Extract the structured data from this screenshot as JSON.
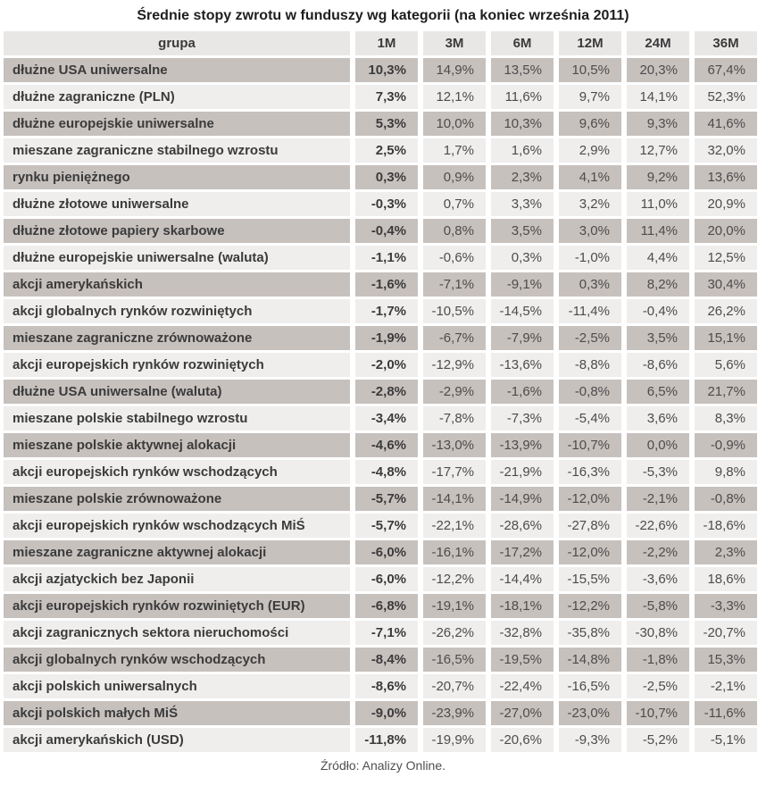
{
  "page": {
    "title": "Średnie stopy zwrotu w funduszy wg kategorii (na koniec września 2011)",
    "source": "Źródło: Analizy Online."
  },
  "colors": {
    "row_dark": "#c7c1be",
    "row_light": "#efeeed",
    "header_bg": "#e9e7e6",
    "label_text": "#3b3b3b",
    "value_text": "#4c4c4c"
  },
  "chart_data": {
    "type": "table",
    "columns": [
      "grupa",
      "1M",
      "3M",
      "6M",
      "12M",
      "24M",
      "36M"
    ],
    "rows": [
      {
        "group": "dłużne USA uniwersalne",
        "values": [
          "10,3%",
          "14,9%",
          "13,5%",
          "10,5%",
          "20,3%",
          "67,4%"
        ]
      },
      {
        "group": "dłużne zagraniczne (PLN)",
        "values": [
          "7,3%",
          "12,1%",
          "11,6%",
          "9,7%",
          "14,1%",
          "52,3%"
        ]
      },
      {
        "group": "dłużne europejskie uniwersalne",
        "values": [
          "5,3%",
          "10,0%",
          "10,3%",
          "9,6%",
          "9,3%",
          "41,6%"
        ]
      },
      {
        "group": "mieszane zagraniczne stabilnego wzrostu",
        "values": [
          "2,5%",
          "1,7%",
          "1,6%",
          "2,9%",
          "12,7%",
          "32,0%"
        ]
      },
      {
        "group": "rynku pieniężnego",
        "values": [
          "0,3%",
          "0,9%",
          "2,3%",
          "4,1%",
          "9,2%",
          "13,6%"
        ]
      },
      {
        "group": "dłużne złotowe uniwersalne",
        "values": [
          "-0,3%",
          "0,7%",
          "3,3%",
          "3,2%",
          "11,0%",
          "20,9%"
        ]
      },
      {
        "group": "dłużne złotowe papiery skarbowe",
        "values": [
          "-0,4%",
          "0,8%",
          "3,5%",
          "3,0%",
          "11,4%",
          "20,0%"
        ]
      },
      {
        "group": "dłużne europejskie uniwersalne (waluta)",
        "values": [
          "-1,1%",
          "-0,6%",
          "0,3%",
          "-1,0%",
          "4,4%",
          "12,5%"
        ]
      },
      {
        "group": "akcji amerykańskich",
        "values": [
          "-1,6%",
          "-7,1%",
          "-9,1%",
          "0,3%",
          "8,2%",
          "30,4%"
        ]
      },
      {
        "group": "akcji globalnych rynków rozwiniętych",
        "values": [
          "-1,7%",
          "-10,5%",
          "-14,5%",
          "-11,4%",
          "-0,4%",
          "26,2%"
        ]
      },
      {
        "group": "mieszane zagraniczne zrównoważone",
        "values": [
          "-1,9%",
          "-6,7%",
          "-7,9%",
          "-2,5%",
          "3,5%",
          "15,1%"
        ]
      },
      {
        "group": "akcji europejskich rynków rozwiniętych",
        "values": [
          "-2,0%",
          "-12,9%",
          "-13,6%",
          "-8,8%",
          "-8,6%",
          "5,6%"
        ]
      },
      {
        "group": "dłużne USA uniwersalne (waluta)",
        "values": [
          "-2,8%",
          "-2,9%",
          "-1,6%",
          "-0,8%",
          "6,5%",
          "21,7%"
        ]
      },
      {
        "group": "mieszane polskie stabilnego wzrostu",
        "values": [
          "-3,4%",
          "-7,8%",
          "-7,3%",
          "-5,4%",
          "3,6%",
          "8,3%"
        ]
      },
      {
        "group": "mieszane polskie aktywnej alokacji",
        "values": [
          "-4,6%",
          "-13,0%",
          "-13,9%",
          "-10,7%",
          "0,0%",
          "-0,9%"
        ]
      },
      {
        "group": "akcji europejskich rynków wschodzących",
        "values": [
          "-4,8%",
          "-17,7%",
          "-21,9%",
          "-16,3%",
          "-5,3%",
          "9,8%"
        ]
      },
      {
        "group": "mieszane polskie zrównoważone",
        "values": [
          "-5,7%",
          "-14,1%",
          "-14,9%",
          "-12,0%",
          "-2,1%",
          "-0,8%"
        ]
      },
      {
        "group": "akcji europejskich rynków wschodzących MiŚ",
        "values": [
          "-5,7%",
          "-22,1%",
          "-28,6%",
          "-27,8%",
          "-22,6%",
          "-18,6%"
        ]
      },
      {
        "group": "mieszane zagraniczne aktywnej alokacji",
        "values": [
          "-6,0%",
          "-16,1%",
          "-17,2%",
          "-12,0%",
          "-2,2%",
          "2,3%"
        ]
      },
      {
        "group": "akcji azjatyckich bez Japonii",
        "values": [
          "-6,0%",
          "-12,2%",
          "-14,4%",
          "-15,5%",
          "-3,6%",
          "18,6%"
        ]
      },
      {
        "group": "akcji europejskich rynków rozwiniętych (EUR)",
        "values": [
          "-6,8%",
          "-19,1%",
          "-18,1%",
          "-12,2%",
          "-5,8%",
          "-3,3%"
        ]
      },
      {
        "group": "akcji zagranicznych sektora nieruchomości",
        "values": [
          "-7,1%",
          "-26,2%",
          "-32,8%",
          "-35,8%",
          "-30,8%",
          "-20,7%"
        ]
      },
      {
        "group": "akcji globalnych rynków wschodzących",
        "values": [
          "-8,4%",
          "-16,5%",
          "-19,5%",
          "-14,8%",
          "-1,8%",
          "15,3%"
        ]
      },
      {
        "group": "akcji polskich uniwersalnych",
        "values": [
          "-8,6%",
          "-20,7%",
          "-22,4%",
          "-16,5%",
          "-2,5%",
          "-2,1%"
        ]
      },
      {
        "group": "akcji polskich małych MiŚ",
        "values": [
          "-9,0%",
          "-23,9%",
          "-27,0%",
          "-23,0%",
          "-10,7%",
          "-11,6%"
        ]
      },
      {
        "group": "akcji amerykańskich (USD)",
        "values": [
          "-11,8%",
          "-19,9%",
          "-20,6%",
          "-9,3%",
          "-5,2%",
          "-5,1%"
        ]
      }
    ]
  }
}
